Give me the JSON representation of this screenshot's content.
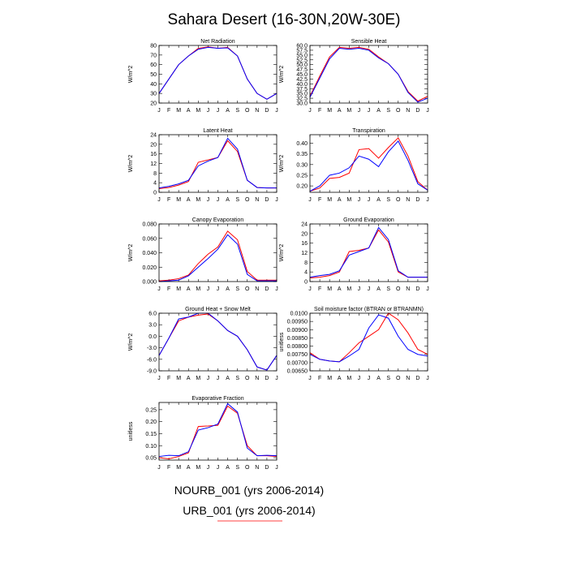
{
  "title": "Sahara Desert (16-30N,20W-30E)",
  "months": [
    "J",
    "F",
    "M",
    "A",
    "M",
    "J",
    "J",
    "A",
    "S",
    "O",
    "N",
    "D",
    "J"
  ],
  "legend": {
    "items": [
      {
        "label": "NOURB_001 (yrs 2006-2014)",
        "color": "#0000ff"
      },
      {
        "label": "URB_001 (yrs 2006-2014)",
        "color": "#ff0000"
      }
    ]
  },
  "colors": {
    "nourb": "#0000ff",
    "urb": "#ff0000"
  },
  "chart_data": [
    {
      "type": "line",
      "title": "Net Radiation",
      "ylabel": "W/m^2",
      "ylim": [
        20,
        80
      ],
      "yticks": [
        20,
        30,
        40,
        50,
        60,
        70,
        80
      ],
      "ytick_labels": [
        "20",
        "30",
        "40",
        "50",
        "60",
        "70",
        "80"
      ],
      "series": [
        {
          "name": "NOURB_001 (yrs 2006-2014)",
          "values": [
            30,
            45,
            60,
            69,
            76,
            78,
            77,
            77.5,
            69,
            45,
            30,
            24,
            30
          ]
        },
        {
          "name": "URB_001 (yrs 2006-2014)",
          "values": [
            30,
            45,
            60,
            69,
            77,
            78.5,
            77,
            78,
            69,
            45,
            30,
            24,
            30
          ]
        }
      ]
    },
    {
      "type": "line",
      "title": "Sensible Heat",
      "ylabel": "W/m^2",
      "ylim": [
        30,
        60
      ],
      "yticks": [
        30,
        32.5,
        35,
        37.5,
        40,
        42.5,
        45,
        47.5,
        50,
        52.5,
        55,
        57.5,
        60
      ],
      "ytick_labels": [
        "30.0",
        "32.5",
        "35.0",
        "37.5",
        "40.0",
        "42.5",
        "45.0",
        "47.5",
        "50.0",
        "52.5",
        "55.0",
        "57.5",
        "60.0"
      ],
      "series": [
        {
          "name": "NOURB_001 (yrs 2006-2014)",
          "values": [
            33,
            43,
            53,
            58.5,
            58,
            58.5,
            57.5,
            53.5,
            50.5,
            45,
            35.5,
            30.5,
            32.5
          ]
        },
        {
          "name": "URB_001 (yrs 2006-2014)",
          "values": [
            33.5,
            44,
            54,
            59,
            58.5,
            59,
            58,
            54,
            50.5,
            45,
            36,
            31,
            33.5
          ]
        }
      ]
    },
    {
      "type": "line",
      "title": "Latent Heat",
      "ylabel": "W/m^2",
      "ylim": [
        0,
        24
      ],
      "yticks": [
        0,
        4,
        8,
        12,
        16,
        20,
        24
      ],
      "ytick_labels": [
        "0",
        "4",
        "8",
        "12",
        "16",
        "20",
        "24"
      ],
      "series": [
        {
          "name": "NOURB_001 (yrs 2006-2014)",
          "values": [
            1.8,
            2.5,
            3.5,
            5,
            11,
            13,
            14.5,
            22.5,
            18,
            5,
            2,
            1.8,
            1.8
          ]
        },
        {
          "name": "URB_001 (yrs 2006-2014)",
          "values": [
            1.5,
            2,
            3,
            4.5,
            12.5,
            13.5,
            14.5,
            21.5,
            17,
            5,
            2,
            1.8,
            1.8
          ]
        }
      ]
    },
    {
      "type": "line",
      "title": "Transpiration",
      "ylabel": "W/m^2",
      "ylim": [
        0.17,
        0.44
      ],
      "yticks": [
        0.2,
        0.25,
        0.3,
        0.35,
        0.4
      ],
      "ytick_labels": [
        "0.20",
        "0.25",
        "0.30",
        "0.35",
        "0.40"
      ],
      "series": [
        {
          "name": "NOURB_001 (yrs 2006-2014)",
          "values": [
            0.175,
            0.2,
            0.25,
            0.26,
            0.285,
            0.34,
            0.325,
            0.29,
            0.36,
            0.41,
            0.32,
            0.21,
            0.18
          ]
        },
        {
          "name": "URB_001 (yrs 2006-2014)",
          "values": [
            0.175,
            0.19,
            0.235,
            0.24,
            0.26,
            0.37,
            0.375,
            0.33,
            0.38,
            0.425,
            0.34,
            0.22,
            0.18
          ]
        }
      ]
    },
    {
      "type": "line",
      "title": "Canopy Evaporation",
      "ylabel": "W/m^2",
      "ylim": [
        0,
        0.08
      ],
      "yticks": [
        0,
        0.02,
        0.04,
        0.06,
        0.08
      ],
      "ytick_labels": [
        "0.000",
        "0.020",
        "0.040",
        "0.060",
        "0.080"
      ],
      "series": [
        {
          "name": "NOURB_001 (yrs 2006-2014)",
          "values": [
            0,
            0.001,
            0.002,
            0.008,
            0.02,
            0.032,
            0.045,
            0.065,
            0.052,
            0.01,
            0.001,
            0.001,
            0.001
          ]
        },
        {
          "name": "URB_001 (yrs 2006-2014)",
          "values": [
            0.001,
            0.002,
            0.004,
            0.009,
            0.025,
            0.038,
            0.048,
            0.07,
            0.058,
            0.014,
            0.002,
            0.002,
            0.002
          ]
        }
      ]
    },
    {
      "type": "line",
      "title": "Ground Evaporation",
      "ylabel": "W/m^2",
      "ylim": [
        0,
        24
      ],
      "yticks": [
        0,
        4,
        8,
        12,
        16,
        20,
        24
      ],
      "ytick_labels": [
        "0",
        "4",
        "8",
        "12",
        "16",
        "20",
        "24"
      ],
      "series": [
        {
          "name": "NOURB_001 (yrs 2006-2014)",
          "values": [
            1.8,
            2.5,
            3,
            4.5,
            11,
            12.5,
            14,
            22.5,
            17.5,
            4.5,
            1.8,
            1.8,
            1.8
          ]
        },
        {
          "name": "URB_001 (yrs 2006-2014)",
          "values": [
            1.5,
            1.8,
            2.5,
            4,
            12.5,
            13,
            14,
            21.5,
            16.5,
            4,
            1.8,
            1.8,
            1.8
          ]
        }
      ]
    },
    {
      "type": "line",
      "title": "Ground Heat + Snow Melt",
      "ylabel": "W/m^2",
      "ylim": [
        -9,
        6
      ],
      "yticks": [
        -9,
        -6,
        -3,
        0,
        3,
        6
      ],
      "ytick_labels": [
        "-9.0",
        "-6.0",
        "-3.0",
        "0.0",
        "3.0",
        "6.0"
      ],
      "series": [
        {
          "name": "NOURB_001 (yrs 2006-2014)",
          "values": [
            -5,
            -0.5,
            4.5,
            5,
            6,
            6,
            4,
            1.5,
            0,
            -3.5,
            -8,
            -8.8,
            -5
          ]
        },
        {
          "name": "URB_001 (yrs 2006-2014)",
          "values": [
            -5,
            -0.5,
            4,
            5,
            5.5,
            5.8,
            4,
            1.5,
            0,
            -3.5,
            -8,
            -8.8,
            -5
          ]
        }
      ]
    },
    {
      "type": "line",
      "title": "Soil moisture factor (BTRAN or BTRANMN)",
      "ylabel": "unitless",
      "ylim": [
        0.0065,
        0.01
      ],
      "yticks": [
        0.0065,
        0.007,
        0.0075,
        0.008,
        0.0085,
        0.009,
        0.0095,
        0.01
      ],
      "ytick_labels": [
        "0.00650",
        "0.00700",
        "0.00750",
        "0.00800",
        "0.00850",
        "0.00900",
        "0.00950",
        "0.0100"
      ],
      "series": [
        {
          "name": "NOURB_001 (yrs 2006-2014)",
          "values": [
            0.0075,
            0.0072,
            0.0071,
            0.00705,
            0.0074,
            0.0078,
            0.0091,
            0.0099,
            0.0097,
            0.0086,
            0.0078,
            0.0075,
            0.0074
          ]
        },
        {
          "name": "URB_001 (yrs 2006-2014)",
          "values": [
            0.0076,
            0.0072,
            0.0071,
            0.00705,
            0.0076,
            0.0082,
            0.0086,
            0.009,
            0.01,
            0.0096,
            0.0088,
            0.0078,
            0.0075
          ]
        }
      ]
    },
    {
      "type": "line",
      "title": "Evaporative Fraction",
      "ylabel": "unitless",
      "ylim": [
        0.04,
        0.28
      ],
      "yticks": [
        0.05,
        0.1,
        0.15,
        0.2,
        0.25
      ],
      "ytick_labels": [
        "0.05",
        "0.10",
        "0.15",
        "0.20",
        "0.25"
      ],
      "series": [
        {
          "name": "NOURB_001 (yrs 2006-2014)",
          "values": [
            0.055,
            0.06,
            0.058,
            0.075,
            0.165,
            0.175,
            0.19,
            0.275,
            0.24,
            0.09,
            0.058,
            0.06,
            0.058
          ]
        },
        {
          "name": "URB_001 (yrs 2006-2014)",
          "values": [
            0.05,
            0.045,
            0.055,
            0.07,
            0.18,
            0.182,
            0.185,
            0.265,
            0.235,
            0.1,
            0.058,
            0.058,
            0.055
          ]
        }
      ]
    }
  ]
}
